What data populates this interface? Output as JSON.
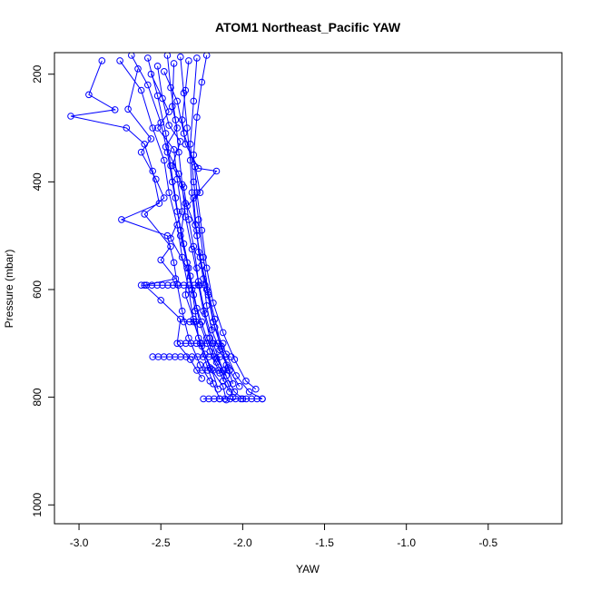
{
  "chart_data": {
    "type": "line",
    "title": "ATOM1 Northeast_Pacific YAW",
    "xlabel": "YAW",
    "ylabel": "Pressure (mbar)",
    "xlim": [
      -3.15,
      -0.05
    ],
    "ylim": [
      1035,
      160
    ],
    "y_reversed": true,
    "x_ticks": [
      -3.0,
      -2.5,
      -2.0,
      -1.5,
      -1.0,
      -0.5
    ],
    "x_tick_labels": [
      "-3.0",
      "-2.5",
      "-2.0",
      "-1.5",
      "-1.0",
      "-0.5"
    ],
    "y_ticks": [
      200,
      400,
      600,
      800,
      1000
    ],
    "y_tick_labels": [
      "200",
      "400",
      "600",
      "800",
      "1000"
    ],
    "grid": false,
    "marker": "open-circle",
    "series_color": "#0000ff",
    "series": [
      {
        "points": [
          [
            -2.75,
            175
          ],
          [
            -2.62,
            230
          ],
          [
            -2.55,
            300
          ],
          [
            -2.48,
            360
          ],
          [
            -2.45,
            420
          ],
          [
            -2.4,
            480
          ],
          [
            -2.37,
            540
          ],
          [
            -2.33,
            600
          ],
          [
            -2.3,
            660
          ],
          [
            -2.25,
            705
          ],
          [
            -2.2,
            745
          ],
          [
            -2.12,
            780
          ],
          [
            -2.1,
            805
          ]
        ]
      },
      {
        "points": [
          [
            -2.68,
            165
          ],
          [
            -2.58,
            220
          ],
          [
            -2.5,
            290
          ],
          [
            -2.46,
            345
          ],
          [
            -2.43,
            400
          ],
          [
            -2.4,
            455
          ],
          [
            -2.36,
            515
          ],
          [
            -2.32,
            575
          ],
          [
            -2.28,
            635
          ],
          [
            -2.22,
            690
          ],
          [
            -2.16,
            735
          ],
          [
            -2.09,
            775
          ],
          [
            -2.06,
            800
          ]
        ]
      },
      {
        "points": [
          [
            -2.58,
            170
          ],
          [
            -2.52,
            240
          ],
          [
            -2.47,
            310
          ],
          [
            -2.44,
            370
          ],
          [
            -2.41,
            430
          ],
          [
            -2.38,
            490
          ],
          [
            -2.34,
            550
          ],
          [
            -2.3,
            610
          ],
          [
            -2.26,
            665
          ],
          [
            -2.2,
            715
          ],
          [
            -2.14,
            755
          ],
          [
            -2.08,
            790
          ]
        ]
      },
      {
        "points": [
          [
            -2.46,
            165
          ],
          [
            -2.44,
            225
          ],
          [
            -2.41,
            285
          ],
          [
            -2.39,
            345
          ],
          [
            -2.37,
            405
          ],
          [
            -2.35,
            465
          ],
          [
            -2.31,
            525
          ],
          [
            -2.27,
            585
          ],
          [
            -2.23,
            645
          ],
          [
            -2.18,
            700
          ],
          [
            -2.12,
            750
          ],
          [
            -2.05,
            790
          ],
          [
            -2.0,
            803
          ]
        ]
      },
      {
        "points": [
          [
            -2.38,
            168
          ],
          [
            -2.36,
            235
          ],
          [
            -2.34,
            300
          ],
          [
            -2.32,
            360
          ],
          [
            -2.31,
            420
          ],
          [
            -2.29,
            480
          ],
          [
            -2.26,
            540
          ],
          [
            -2.22,
            600
          ],
          [
            -2.18,
            660
          ],
          [
            -2.13,
            710
          ],
          [
            -2.08,
            750
          ],
          [
            -2.02,
            780
          ]
        ]
      },
      {
        "points": [
          [
            -2.28,
            170
          ],
          [
            -2.3,
            250
          ],
          [
            -2.32,
            330
          ],
          [
            -2.3,
            400
          ],
          [
            -2.27,
            470
          ],
          [
            -2.24,
            540
          ],
          [
            -2.21,
            610
          ],
          [
            -2.17,
            670
          ],
          [
            -2.1,
            720
          ],
          [
            -2.04,
            760
          ],
          [
            -1.96,
            790
          ],
          [
            -1.88,
            803
          ]
        ]
      },
      {
        "points": [
          [
            -2.22,
            165
          ],
          [
            -2.25,
            215
          ],
          [
            -2.28,
            280
          ],
          [
            -2.3,
            350
          ],
          [
            -2.28,
            420
          ],
          [
            -2.25,
            490
          ],
          [
            -2.22,
            560
          ],
          [
            -2.18,
            625
          ],
          [
            -2.12,
            680
          ],
          [
            -2.05,
            730
          ],
          [
            -1.98,
            770
          ],
          [
            -1.92,
            785
          ]
        ]
      },
      {
        "points": [
          [
            -2.86,
            175
          ],
          [
            -2.94,
            238
          ],
          [
            -2.78,
            266
          ],
          [
            -3.05,
            278
          ],
          [
            -2.71,
            300
          ],
          [
            -2.6,
            330
          ],
          [
            -2.55,
            380
          ],
          [
            -2.51,
            440
          ],
          [
            -2.74,
            470
          ],
          [
            -2.46,
            500
          ],
          [
            -2.42,
            550
          ],
          [
            -2.4,
            590
          ],
          [
            -2.37,
            640
          ],
          [
            -2.33,
            690
          ],
          [
            -2.26,
            740
          ],
          [
            -2.2,
            770
          ]
        ]
      },
      {
        "points": [
          [
            -2.64,
            190
          ],
          [
            -2.7,
            265
          ],
          [
            -2.56,
            320
          ],
          [
            -2.62,
            345
          ],
          [
            -2.53,
            395
          ],
          [
            -2.48,
            430
          ],
          [
            -2.6,
            460
          ],
          [
            -2.44,
            520
          ],
          [
            -2.5,
            545
          ],
          [
            -2.41,
            580
          ],
          [
            -2.6,
            592
          ],
          [
            -2.5,
            620
          ],
          [
            -2.38,
            655
          ],
          [
            -2.4,
            700
          ],
          [
            -2.32,
            730
          ],
          [
            -2.25,
            765
          ]
        ]
      },
      {
        "points": [
          [
            -2.52,
            185
          ],
          [
            -2.49,
            245
          ],
          [
            -2.45,
            295
          ],
          [
            -2.38,
            325
          ],
          [
            -2.43,
            370
          ],
          [
            -2.36,
            410
          ],
          [
            -2.33,
            470
          ],
          [
            -2.3,
            520
          ],
          [
            -2.28,
            560
          ],
          [
            -2.27,
            592
          ],
          [
            -2.24,
            640
          ],
          [
            -2.2,
            690
          ],
          [
            -2.16,
            728
          ],
          [
            -2.1,
            760
          ]
        ]
      },
      {
        "points": [
          [
            -2.42,
            180
          ],
          [
            -2.43,
            260
          ],
          [
            -2.4,
            300
          ],
          [
            -2.47,
            335
          ],
          [
            -2.39,
            385
          ],
          [
            -2.35,
            440
          ],
          [
            -2.38,
            500
          ],
          [
            -2.33,
            560
          ],
          [
            -2.35,
            610
          ],
          [
            -2.3,
            655
          ],
          [
            -2.26,
            700
          ],
          [
            -2.22,
            740
          ],
          [
            -2.18,
            775
          ],
          [
            -2.14,
            803
          ]
        ]
      },
      {
        "points": [
          [
            -2.33,
            175
          ],
          [
            -2.35,
            230
          ],
          [
            -2.37,
            285
          ],
          [
            -2.35,
            330
          ],
          [
            -2.27,
            375
          ],
          [
            -2.16,
            380
          ],
          [
            -2.3,
            430
          ],
          [
            -2.28,
            500
          ],
          [
            -2.25,
            555
          ],
          [
            -2.21,
            605
          ],
          [
            -2.17,
            655
          ],
          [
            -2.13,
            705
          ],
          [
            -2.1,
            740
          ],
          [
            -2.12,
            770
          ]
        ]
      },
      {
        "points": [
          [
            -2.56,
            200
          ],
          [
            -2.45,
            270
          ],
          [
            -2.52,
            300
          ],
          [
            -2.42,
            340
          ],
          [
            -2.4,
            395
          ],
          [
            -2.37,
            455
          ],
          [
            -2.44,
            505
          ],
          [
            -2.34,
            560
          ],
          [
            -2.31,
            600
          ],
          [
            -2.29,
            640
          ],
          [
            -2.27,
            690
          ],
          [
            -2.23,
            720
          ],
          [
            -2.19,
            748
          ],
          [
            -2.15,
            785
          ]
        ]
      },
      {
        "points": [
          [
            -2.48,
            195
          ],
          [
            -2.4,
            250
          ],
          [
            -2.36,
            310
          ],
          [
            -2.29,
            372
          ],
          [
            -2.26,
            420
          ],
          [
            -2.34,
            445
          ],
          [
            -2.28,
            490
          ],
          [
            -2.27,
            530
          ],
          [
            -2.24,
            580
          ],
          [
            -2.22,
            630
          ],
          [
            -2.19,
            675
          ],
          [
            -2.14,
            712
          ],
          [
            -2.09,
            745
          ],
          [
            -2.06,
            775
          ]
        ]
      }
    ],
    "horizontal_segments": [
      {
        "y": 592,
        "x": [
          -2.62,
          -2.23
        ]
      },
      {
        "y": 660,
        "x": [
          -2.36,
          -2.25
        ]
      },
      {
        "y": 700,
        "x": [
          -2.38,
          -2.12
        ]
      },
      {
        "y": 725,
        "x": [
          -2.55,
          -2.07
        ]
      },
      {
        "y": 750,
        "x": [
          -2.28,
          -2.08
        ]
      },
      {
        "y": 803,
        "x": [
          -2.24,
          -1.88
        ]
      }
    ]
  }
}
